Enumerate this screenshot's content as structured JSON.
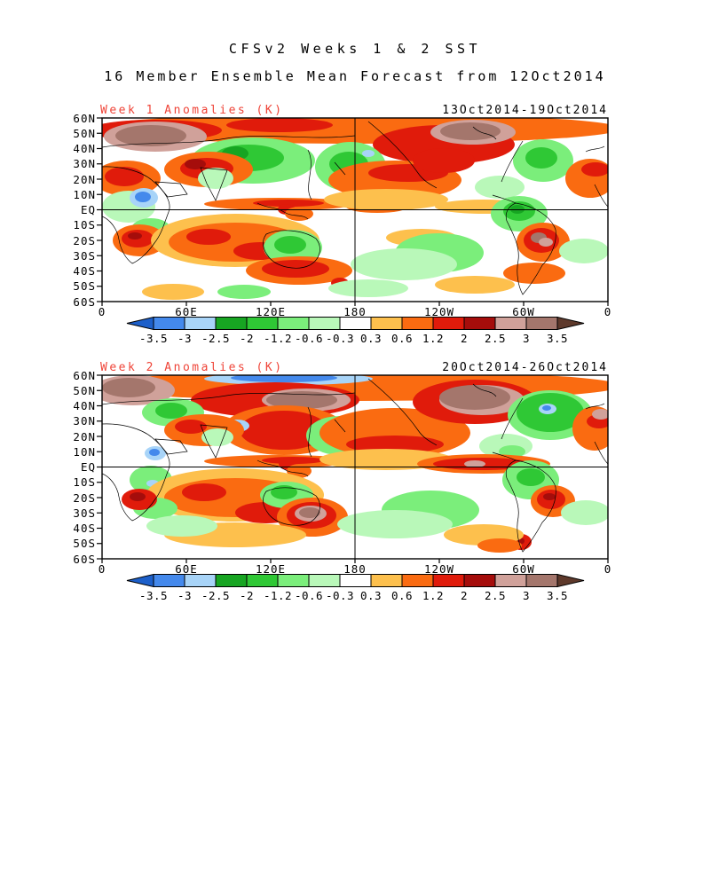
{
  "header": {
    "title_line1": "CFSv2 Weeks 1 & 2 SST",
    "title_line2": "16 Member Ensemble Mean Forecast from 12Oct2014"
  },
  "chart_data": {
    "type": "heatmap",
    "subtype": "filled-contour global SST/temperature anomaly maps, 2 panels",
    "units": "K",
    "projection": "latlon 0E-360E, 60S-60N",
    "x_ticks": [
      "0",
      "60E",
      "120E",
      "180",
      "120W",
      "60W",
      "0"
    ],
    "y_ticks": [
      "60N",
      "50N",
      "40N",
      "30N",
      "20N",
      "10N",
      "EQ",
      "10S",
      "20S",
      "30S",
      "40S",
      "50S",
      "60S"
    ],
    "grid_lines": [
      "equator",
      "180 meridian"
    ],
    "colorbar": {
      "levels": [
        "-3.5",
        "-3",
        "-2.5",
        "-2",
        "-1.2",
        "-0.6",
        "-0.3",
        "0.3",
        "0.6",
        "1.2",
        "2",
        "2.5",
        "3",
        "3.5"
      ],
      "colors": [
        "#1c5fca",
        "#4489ec",
        "#a8d4f8",
        "#17a522",
        "#2fc835",
        "#7bee7b",
        "#b9f8b9",
        "#ffffff",
        "#fdc04d",
        "#fa6b11",
        "#e01b0b",
        "#a50d0b",
        "#d0a19a",
        "#a4766c",
        "#5e392b"
      ],
      "position": "below each panel, horizontal, triangular end arrows"
    },
    "palette": {
      "blue": "#4489ec",
      "lblue": "#a8d4f8",
      "dgreen": "#17a522",
      "green": "#2fc835",
      "lgreen": "#7bee7b",
      "pgreen": "#b9f8b9",
      "white": "#ffffff",
      "gold": "#fdc04d",
      "orange": "#fa6b11",
      "red": "#e01b0b",
      "dred": "#a50d0b",
      "rosy": "#d0a19a",
      "brown": "#a4766c"
    },
    "panels": [
      {
        "title": "Week 1 Anomalies (K)",
        "title_color": "#ef4438",
        "date_range": "13Oct2014-19Oct2014",
        "notable_anomalies": {
          "warm": [
            "N Europe / W Russia to +3.5 K (brown)",
            "Central Canada to +3.5 K (brown)",
            "Middle East & N Africa +1 to +2.5 K",
            "N Pacific 30-50N +0.6 to +2 K",
            "S Indian Ocean 10-35S +0.6 to +2 K",
            "South of Australia +1.2 to +2 K",
            "SE Brazil / Parana to +3.5 K",
            "Equatorial W Pacific band +0.3 to +1.2 K"
          ],
          "cool": [
            "Central & E Asia -0.6 to -2 K",
            "NW Pacific -0.6 to -1.2 K",
            "NE Africa to -3 K (blue)",
            "N Atlantic 40-55N -0.6 to -2 K",
            "N South America -0.6 to -2.5 K",
            "Australian interior -0.6 to -1.2 K",
            "S Pacific midlatitudes -0.3 to -1.2 K"
          ]
        },
        "features": [
          [
            "orange",
            285,
            12,
            300,
            17
          ],
          [
            "red",
            60,
            14,
            75,
            12
          ],
          [
            "red",
            200,
            8,
            60,
            8
          ],
          [
            "red",
            385,
            30,
            80,
            22
          ],
          [
            "rosy",
            60,
            21,
            58,
            17
          ],
          [
            "brown",
            55,
            20,
            40,
            12
          ],
          [
            "rosy",
            418,
            16,
            48,
            14
          ],
          [
            "brown",
            415,
            15,
            34,
            10
          ],
          [
            "lgreen",
            170,
            48,
            70,
            26
          ],
          [
            "green",
            165,
            45,
            40,
            15
          ],
          [
            "dgreen",
            150,
            40,
            15,
            8
          ],
          [
            "lgreen",
            280,
            55,
            40,
            28
          ],
          [
            "green",
            278,
            52,
            22,
            14
          ],
          [
            "lblue",
            300,
            40,
            7,
            4
          ],
          [
            "orange",
            120,
            58,
            50,
            20
          ],
          [
            "red",
            118,
            57,
            30,
            12
          ],
          [
            "dred",
            105,
            52,
            12,
            6
          ],
          [
            "orange",
            28,
            68,
            38,
            20
          ],
          [
            "red",
            25,
            66,
            22,
            11
          ],
          [
            "pgreen",
            30,
            100,
            30,
            18
          ],
          [
            "lblue",
            47,
            90,
            16,
            11
          ],
          [
            "blue",
            46,
            89,
            9,
            6
          ],
          [
            "pgreen",
            128,
            68,
            20,
            12
          ],
          [
            "orange",
            200,
            97,
            85,
            7
          ],
          [
            "red",
            210,
            96,
            40,
            4
          ],
          [
            "orange",
            310,
            100,
            35,
            7
          ],
          [
            "red",
            208,
            103,
            10,
            6
          ],
          [
            "orange",
            222,
            108,
            16,
            8
          ],
          [
            "lgreen",
            55,
            125,
            22,
            12
          ],
          [
            "red",
            92,
            137,
            8,
            11
          ],
          [
            "orange",
            42,
            138,
            30,
            18
          ],
          [
            "red",
            40,
            136,
            18,
            10
          ],
          [
            "dred",
            37,
            133,
            8,
            4
          ],
          [
            "gold",
            150,
            138,
            95,
            30
          ],
          [
            "orange",
            150,
            140,
            75,
            22
          ],
          [
            "red",
            120,
            134,
            25,
            9
          ],
          [
            "red",
            178,
            150,
            30,
            10
          ],
          [
            "lgreen",
            215,
            146,
            33,
            20
          ],
          [
            "green",
            212,
            143,
            18,
            10
          ],
          [
            "orange",
            222,
            172,
            60,
            16
          ],
          [
            "red",
            218,
            170,
            38,
            10
          ],
          [
            "red",
            268,
            186,
            10,
            6
          ],
          [
            "pgreen",
            300,
            192,
            45,
            10
          ],
          [
            "lgreen",
            160,
            196,
            30,
            8
          ],
          [
            "gold",
            80,
            196,
            35,
            9
          ],
          [
            "orange",
            330,
            70,
            75,
            22
          ],
          [
            "red",
            345,
            62,
            45,
            10
          ],
          [
            "gold",
            320,
            92,
            70,
            12
          ],
          [
            "red",
            385,
            48,
            35,
            14
          ],
          [
            "lgreen",
            497,
            48,
            34,
            24
          ],
          [
            "green",
            495,
            45,
            18,
            12
          ],
          [
            "orange",
            550,
            68,
            28,
            22
          ],
          [
            "red",
            556,
            58,
            16,
            8
          ],
          [
            "pgreen",
            448,
            78,
            28,
            13
          ],
          [
            "gold",
            430,
            100,
            55,
            8
          ],
          [
            "gold",
            360,
            135,
            40,
            10
          ],
          [
            "lgreen",
            470,
            108,
            32,
            20
          ],
          [
            "green",
            470,
            105,
            18,
            11
          ],
          [
            "dgreen",
            468,
            103,
            8,
            5
          ],
          [
            "orange",
            497,
            140,
            30,
            22
          ],
          [
            "red",
            495,
            138,
            20,
            14
          ],
          [
            "brown",
            492,
            135,
            9,
            6
          ],
          [
            "rosy",
            500,
            140,
            8,
            5
          ],
          [
            "orange",
            487,
            175,
            35,
            12
          ],
          [
            "lgreen",
            380,
            152,
            50,
            22
          ],
          [
            "pgreen",
            340,
            165,
            60,
            18
          ],
          [
            "gold",
            420,
            188,
            45,
            10
          ],
          [
            "pgreen",
            543,
            150,
            28,
            14
          ]
        ]
      },
      {
        "title": "Week 2 Anomalies (K)",
        "title_color": "#ef4438",
        "date_range": "20Oct2014-26Oct2014",
        "notable_anomalies": {
          "warm": [
            "Scandinavia to +3.5 K (brown)",
            "Siberia / E Asia +1.2 to +3 K",
            "Central Canada to +3.5 K (brown)",
            "SE Australia to +3.5 K (brown)",
            "Equatorial E Pacific band +0.6 to +2 K",
            "S Indian Ocean +0.6 to +2 K",
            "SE Brazil +1.2 to +2.5 K",
            "N Pacific 30-50N +0.6 to +1.2 K"
          ],
          "cool": [
            "Arctic coastal seas to -3.5 K (blue band)",
            "Europe -0.6 to -1.2 K",
            "NW Pacific / Japan -0.6 to -1.2 K",
            "N Atlantic green blob with -3 K blue core",
            "Amazonia -0.6 to -1.2 K",
            "E Africa patches to -3 K",
            "S Pacific midlatitudes -0.3 to -1.2 K"
          ]
        },
        "features": [
          [
            "orange",
            285,
            12,
            300,
            17
          ],
          [
            "lblue",
            210,
            4,
            95,
            7
          ],
          [
            "blue",
            205,
            3,
            60,
            5
          ],
          [
            "rosy",
            35,
            17,
            47,
            17
          ],
          [
            "brown",
            30,
            14,
            30,
            11
          ],
          [
            "red",
            195,
            28,
            95,
            20
          ],
          [
            "rosy",
            230,
            28,
            50,
            13
          ],
          [
            "brown",
            225,
            28,
            40,
            10
          ],
          [
            "lgreen",
            80,
            42,
            35,
            16
          ],
          [
            "green",
            78,
            40,
            18,
            9
          ],
          [
            "orange",
            205,
            62,
            70,
            28
          ],
          [
            "red",
            205,
            62,
            50,
            22
          ],
          [
            "lblue",
            152,
            57,
            14,
            7
          ],
          [
            "blue",
            150,
            56,
            7,
            4
          ],
          [
            "lgreen",
            268,
            68,
            38,
            22
          ],
          [
            "green",
            265,
            65,
            20,
            12
          ],
          [
            "orange",
            115,
            62,
            45,
            18
          ],
          [
            "red",
            100,
            58,
            18,
            8
          ],
          [
            "lblue",
            60,
            88,
            12,
            8
          ],
          [
            "blue",
            59,
            87,
            6,
            4
          ],
          [
            "pgreen",
            130,
            70,
            18,
            10
          ],
          [
            "orange",
            200,
            97,
            85,
            7
          ],
          [
            "red",
            215,
            96,
            35,
            4
          ],
          [
            "red",
            210,
            100,
            11,
            7
          ],
          [
            "orange",
            222,
            108,
            14,
            8
          ],
          [
            "lgreen",
            55,
            118,
            24,
            16
          ],
          [
            "lblue",
            57,
            122,
            7,
            4
          ],
          [
            "gold",
            150,
            135,
            100,
            30
          ],
          [
            "orange",
            150,
            138,
            80,
            22
          ],
          [
            "red",
            115,
            132,
            25,
            10
          ],
          [
            "red",
            185,
            155,
            35,
            12
          ],
          [
            "lgreen",
            208,
            135,
            30,
            15
          ],
          [
            "green",
            205,
            132,
            15,
            8
          ],
          [
            "orange",
            237,
            160,
            40,
            22
          ],
          [
            "red",
            236,
            158,
            28,
            15
          ],
          [
            "rosy",
            235,
            156,
            18,
            9
          ],
          [
            "brown",
            234,
            155,
            12,
            6
          ],
          [
            "gold",
            150,
            180,
            80,
            14
          ],
          [
            "lgreen",
            60,
            150,
            25,
            12
          ],
          [
            "pgreen",
            90,
            170,
            40,
            12
          ],
          [
            "red",
            42,
            140,
            20,
            12
          ],
          [
            "dred",
            40,
            137,
            9,
            5
          ],
          [
            "orange",
            330,
            65,
            85,
            28
          ],
          [
            "red",
            330,
            78,
            55,
            10
          ],
          [
            "gold",
            320,
            95,
            75,
            12
          ],
          [
            "red",
            420,
            30,
            70,
            25
          ],
          [
            "rosy",
            428,
            28,
            48,
            17
          ],
          [
            "brown",
            420,
            25,
            40,
            14
          ],
          [
            "lgreen",
            505,
            45,
            48,
            28
          ],
          [
            "green",
            505,
            42,
            38,
            22
          ],
          [
            "lblue",
            502,
            38,
            10,
            6
          ],
          [
            "blue",
            501,
            37,
            5,
            3
          ],
          [
            "orange",
            555,
            60,
            25,
            25
          ],
          [
            "red",
            560,
            52,
            14,
            8
          ],
          [
            "rosy",
            562,
            44,
            10,
            6
          ],
          [
            "pgreen",
            455,
            80,
            30,
            14
          ],
          [
            "lgreen",
            462,
            86,
            15,
            7
          ],
          [
            "orange",
            430,
            100,
            75,
            11
          ],
          [
            "red",
            428,
            100,
            55,
            7
          ],
          [
            "rosy",
            420,
            100,
            12,
            4
          ],
          [
            "lgreen",
            483,
            118,
            32,
            22
          ],
          [
            "green",
            483,
            115,
            16,
            10
          ],
          [
            "orange",
            508,
            142,
            25,
            18
          ],
          [
            "red",
            506,
            140,
            16,
            11
          ],
          [
            "dred",
            504,
            137,
            7,
            4
          ],
          [
            "red",
            472,
            188,
            12,
            9
          ],
          [
            "dred",
            470,
            187,
            6,
            4
          ],
          [
            "lgreen",
            370,
            152,
            55,
            22
          ],
          [
            "pgreen",
            330,
            168,
            65,
            16
          ],
          [
            "gold",
            430,
            180,
            45,
            12
          ],
          [
            "orange",
            448,
            192,
            25,
            8
          ],
          [
            "pgreen",
            545,
            155,
            28,
            14
          ]
        ]
      }
    ]
  }
}
